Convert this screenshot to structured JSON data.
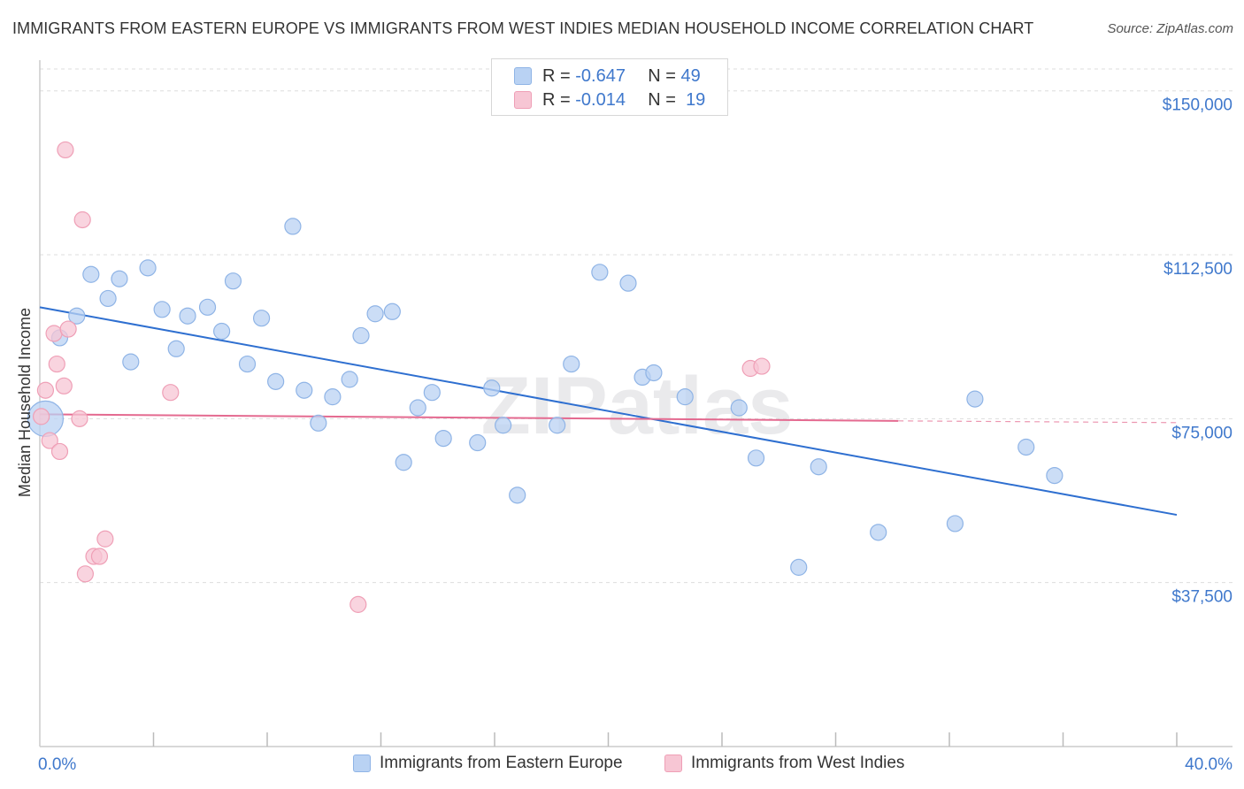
{
  "header": {
    "title": "IMMIGRANTS FROM EASTERN EUROPE VS IMMIGRANTS FROM WEST INDIES MEDIAN HOUSEHOLD INCOME CORRELATION CHART",
    "source": "Source: ZipAtlas.com"
  },
  "colors": {
    "blue_fill": "#b9d2f3",
    "blue_stroke": "#8fb4e6",
    "blue_line": "#2e6fd0",
    "pink_fill": "#f7c6d4",
    "pink_stroke": "#ef9fb6",
    "pink_line": "#e46a90",
    "grid": "#dddddd",
    "axis_label": "#3f78cc"
  },
  "legend": {
    "rows": [
      {
        "r_label": "R =",
        "r_value": "-0.647",
        "n_label": "N =",
        "n_value": "49"
      },
      {
        "r_label": "R =",
        "r_value": "-0.014",
        "n_label": "N =",
        "n_value": "19"
      }
    ]
  },
  "chart_data": {
    "type": "scatter",
    "title": "IMMIGRANTS FROM EASTERN EUROPE VS IMMIGRANTS FROM WEST INDIES MEDIAN HOUSEHOLD INCOME CORRELATION CHART",
    "xlabel": "",
    "ylabel": "Median Household Income",
    "xlim": [
      0,
      40
    ],
    "ylim": [
      0,
      155000
    ],
    "x_tick_labels": [
      "0.0%",
      "40.0%"
    ],
    "y_ticks": [
      37500,
      75000,
      112500,
      150000
    ],
    "y_tick_labels": [
      "$37,500",
      "$75,000",
      "$112,500",
      "$150,000"
    ],
    "watermark": "ZIPatlas",
    "series": [
      {
        "name": "Immigrants from Eastern Europe",
        "color": "blue",
        "r": -0.647,
        "n": 49,
        "trend": {
          "x": [
            0,
            40
          ],
          "y": [
            100500,
            53000
          ]
        },
        "points": [
          {
            "x": 0.2,
            "y": 75000,
            "big": true
          },
          {
            "x": 0.7,
            "y": 93500
          },
          {
            "x": 1.3,
            "y": 98500
          },
          {
            "x": 1.8,
            "y": 108000
          },
          {
            "x": 2.4,
            "y": 102500
          },
          {
            "x": 2.8,
            "y": 107000
          },
          {
            "x": 3.2,
            "y": 88000
          },
          {
            "x": 3.8,
            "y": 109500
          },
          {
            "x": 4.3,
            "y": 100000
          },
          {
            "x": 4.8,
            "y": 91000
          },
          {
            "x": 5.2,
            "y": 98500
          },
          {
            "x": 5.9,
            "y": 100500
          },
          {
            "x": 6.4,
            "y": 95000
          },
          {
            "x": 6.8,
            "y": 106500
          },
          {
            "x": 7.3,
            "y": 87500
          },
          {
            "x": 7.8,
            "y": 98000
          },
          {
            "x": 8.3,
            "y": 83500
          },
          {
            "x": 8.9,
            "y": 119000
          },
          {
            "x": 9.3,
            "y": 81500
          },
          {
            "x": 9.8,
            "y": 74000
          },
          {
            "x": 10.3,
            "y": 80000
          },
          {
            "x": 10.9,
            "y": 84000
          },
          {
            "x": 11.3,
            "y": 94000
          },
          {
            "x": 11.8,
            "y": 99000
          },
          {
            "x": 12.4,
            "y": 99500
          },
          {
            "x": 12.8,
            "y": 65000
          },
          {
            "x": 13.3,
            "y": 77500
          },
          {
            "x": 13.8,
            "y": 81000
          },
          {
            "x": 14.2,
            "y": 70500
          },
          {
            "x": 15.4,
            "y": 69500
          },
          {
            "x": 15.9,
            "y": 82000
          },
          {
            "x": 16.3,
            "y": 73500
          },
          {
            "x": 16.8,
            "y": 57500
          },
          {
            "x": 18.2,
            "y": 73500
          },
          {
            "x": 18.7,
            "y": 87500
          },
          {
            "x": 19.7,
            "y": 108500
          },
          {
            "x": 20.7,
            "y": 106000
          },
          {
            "x": 21.2,
            "y": 84500
          },
          {
            "x": 21.6,
            "y": 85500
          },
          {
            "x": 22.7,
            "y": 80000
          },
          {
            "x": 24.6,
            "y": 77500
          },
          {
            "x": 25.2,
            "y": 66000
          },
          {
            "x": 26.7,
            "y": 41000
          },
          {
            "x": 27.4,
            "y": 64000
          },
          {
            "x": 29.5,
            "y": 49000
          },
          {
            "x": 32.2,
            "y": 51000
          },
          {
            "x": 32.9,
            "y": 79500
          },
          {
            "x": 34.7,
            "y": 68500
          },
          {
            "x": 35.7,
            "y": 62000
          }
        ]
      },
      {
        "name": "Immigrants from West Indies",
        "color": "pink",
        "r": -0.014,
        "n": 19,
        "trend": {
          "x": [
            0,
            30.2,
            40
          ],
          "y": [
            76000,
            74500,
            74100
          ]
        },
        "points": [
          {
            "x": 0.05,
            "y": 75500
          },
          {
            "x": 0.2,
            "y": 81500
          },
          {
            "x": 0.35,
            "y": 70000
          },
          {
            "x": 0.5,
            "y": 94500
          },
          {
            "x": 0.6,
            "y": 87500
          },
          {
            "x": 0.7,
            "y": 67500
          },
          {
            "x": 0.85,
            "y": 82500
          },
          {
            "x": 0.9,
            "y": 136500
          },
          {
            "x": 1.0,
            "y": 95500
          },
          {
            "x": 1.4,
            "y": 75000
          },
          {
            "x": 1.5,
            "y": 120500
          },
          {
            "x": 1.6,
            "y": 39500
          },
          {
            "x": 1.9,
            "y": 43500
          },
          {
            "x": 2.1,
            "y": 43500
          },
          {
            "x": 2.3,
            "y": 47500
          },
          {
            "x": 4.6,
            "y": 81000
          },
          {
            "x": 11.2,
            "y": 32500
          },
          {
            "x": 25.0,
            "y": 86500
          },
          {
            "x": 25.4,
            "y": 87000
          }
        ]
      }
    ]
  },
  "bottom_legend": {
    "items": [
      "Immigrants from Eastern Europe",
      "Immigrants from West Indies"
    ]
  }
}
